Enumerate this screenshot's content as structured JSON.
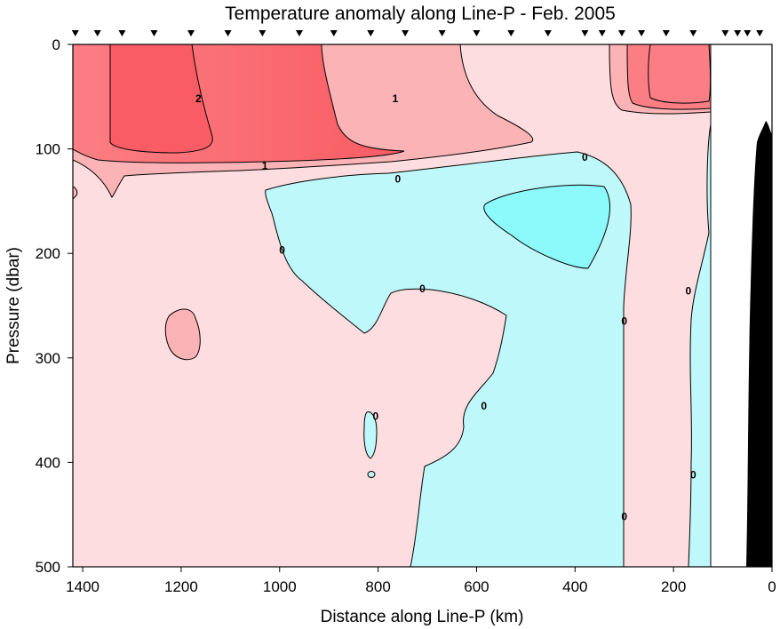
{
  "chart_data": {
    "type": "contour",
    "title": "Temperature anomaly along Line-P - Feb. 2005",
    "xlabel": "Distance along Line-P (km)",
    "ylabel": "Pressure (dbar)",
    "xlim": [
      1420,
      0
    ],
    "ylim": [
      0,
      500
    ],
    "x_reversed": true,
    "y_reversed": true,
    "x_ticks": [
      1400,
      1200,
      1000,
      800,
      600,
      400,
      200,
      0
    ],
    "y_ticks": [
      0,
      100,
      200,
      300,
      400,
      500
    ],
    "contour_levels": [
      0,
      1,
      2
    ],
    "contour_labels": [
      {
        "text": "2",
        "x": 1165,
        "y": 52
      },
      {
        "text": "1",
        "x": 765,
        "y": 52
      },
      {
        "text": "1",
        "x": 1030,
        "y": 116
      },
      {
        "text": "0",
        "x": 380,
        "y": 108
      },
      {
        "text": "0",
        "x": 760,
        "y": 129
      },
      {
        "text": "0",
        "x": 995,
        "y": 197
      },
      {
        "text": "0",
        "x": 710,
        "y": 234
      },
      {
        "text": "0",
        "x": 300,
        "y": 265
      },
      {
        "text": "0",
        "x": 170,
        "y": 236
      },
      {
        "text": "0",
        "x": 585,
        "y": 346
      },
      {
        "text": "0",
        "x": 805,
        "y": 356
      },
      {
        "text": "0",
        "x": 160,
        "y": 412
      },
      {
        "text": "0",
        "x": 300,
        "y": 452
      }
    ],
    "station_positions_km": [
      1415,
      1370,
      1320,
      1255,
      1180,
      1105,
      1035,
      960,
      890,
      815,
      745,
      670,
      600,
      530,
      455,
      380,
      345,
      305,
      265,
      215,
      160,
      95,
      70,
      50,
      25
    ],
    "fill_colors": {
      "negative": "#bff8fa",
      "negative_strong": "#8cf9fb",
      "anomaly_0_to_1": "#fddde0",
      "anomaly_1_to_2": "#fbb3b6",
      "anomaly_above_2": "#fb7e84",
      "anomaly_peak": "#f95c64",
      "bathymetry": "#000000"
    }
  }
}
